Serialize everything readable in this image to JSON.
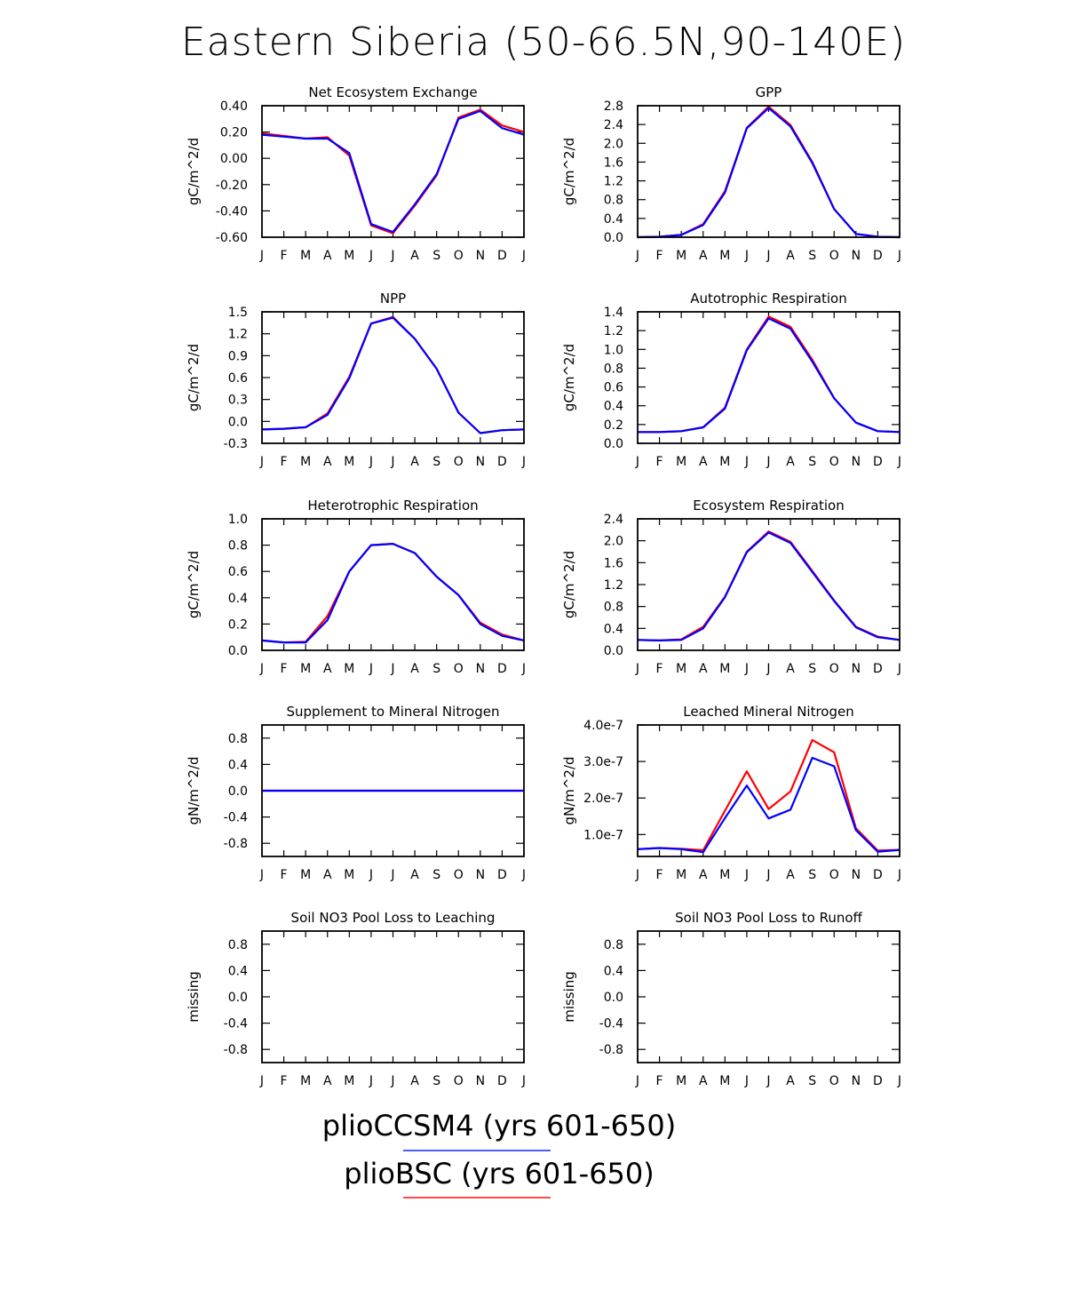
{
  "title": "Eastern Siberia (50-66.5N,90-140E)",
  "months": [
    "J",
    "F",
    "M",
    "A",
    "M",
    "J",
    "J",
    "A",
    "S",
    "O",
    "N",
    "D",
    "J"
  ],
  "legend": [
    {
      "label": "plioCCSM4 (yrs 601-650)",
      "color": "#4a5cff"
    },
    {
      "label": "plioBSC (yrs 601-650)",
      "color": "#ff4a4a"
    }
  ],
  "colors": {
    "series_a": "#0000ff",
    "series_b": "#ff0000"
  },
  "chart_data": [
    {
      "type": "line",
      "title": "Net Ecosystem Exchange",
      "ylabel": "gC/m^2/d",
      "ylim": [
        -0.6,
        0.4
      ],
      "yticks": [
        -0.6,
        -0.4,
        -0.2,
        0.0,
        0.2,
        0.4
      ],
      "ytick_labels": [
        "-0.60",
        "-0.40",
        "-0.20",
        "0.00",
        "0.20",
        "0.40"
      ],
      "series": [
        {
          "name": "plioBSC (yrs 601-650)",
          "values": [
            0.19,
            0.17,
            0.15,
            0.16,
            0.02,
            -0.51,
            -0.57,
            -0.36,
            -0.13,
            0.31,
            0.37,
            0.25,
            0.2
          ]
        },
        {
          "name": "plioCCSM4 (yrs 601-650)",
          "values": [
            0.18,
            0.165,
            0.15,
            0.15,
            0.04,
            -0.5,
            -0.56,
            -0.35,
            -0.12,
            0.3,
            0.36,
            0.23,
            0.18
          ]
        }
      ]
    },
    {
      "type": "line",
      "title": "GPP",
      "ylabel": "gC/m^2/d",
      "ylim": [
        0,
        2.8
      ],
      "yticks": [
        0,
        0.4,
        0.8,
        1.2,
        1.6,
        2.0,
        2.4,
        2.8
      ],
      "ytick_labels": [
        "0.0",
        "0.4",
        "0.8",
        "1.2",
        "1.6",
        "2.0",
        "2.4",
        "2.8"
      ],
      "series": [
        {
          "name": "plioBSC (yrs 601-650)",
          "values": [
            0.0,
            0.01,
            0.05,
            0.28,
            0.98,
            2.33,
            2.78,
            2.39,
            1.6,
            0.6,
            0.07,
            0.01,
            0.0
          ]
        },
        {
          "name": "plioCCSM4 (yrs 601-650)",
          "values": [
            0.0,
            0.01,
            0.05,
            0.26,
            0.95,
            2.32,
            2.75,
            2.36,
            1.58,
            0.6,
            0.07,
            0.01,
            0.0
          ]
        }
      ]
    },
    {
      "type": "line",
      "title": "NPP",
      "ylabel": "gC/m^2/d",
      "ylim": [
        -0.3,
        1.5
      ],
      "yticks": [
        -0.3,
        0,
        0.3,
        0.6,
        0.9,
        1.2,
        1.5
      ],
      "ytick_labels": [
        "-0.3",
        "0.0",
        "0.3",
        "0.6",
        "0.9",
        "1.2",
        "1.5"
      ],
      "series": [
        {
          "name": "plioBSC (yrs 601-650)",
          "values": [
            -0.11,
            -0.1,
            -0.08,
            0.11,
            0.61,
            1.34,
            1.43,
            1.13,
            0.72,
            0.12,
            -0.16,
            -0.12,
            -0.11
          ]
        },
        {
          "name": "plioCCSM4 (yrs 601-650)",
          "values": [
            -0.11,
            -0.1,
            -0.08,
            0.09,
            0.59,
            1.34,
            1.42,
            1.13,
            0.72,
            0.12,
            -0.16,
            -0.12,
            -0.11
          ]
        }
      ]
    },
    {
      "type": "line",
      "title": "Autotrophic Respiration",
      "ylabel": "gC/m^2/d",
      "ylim": [
        0,
        1.4
      ],
      "yticks": [
        0,
        0.2,
        0.4,
        0.6,
        0.8,
        1.0,
        1.2,
        1.4
      ],
      "ytick_labels": [
        "0.0",
        "0.2",
        "0.4",
        "0.6",
        "0.8",
        "1.0",
        "1.2",
        "1.4"
      ],
      "series": [
        {
          "name": "plioBSC (yrs 601-650)",
          "values": [
            0.12,
            0.12,
            0.13,
            0.17,
            0.38,
            1.0,
            1.35,
            1.24,
            0.89,
            0.48,
            0.22,
            0.13,
            0.12
          ]
        },
        {
          "name": "plioCCSM4 (yrs 601-650)",
          "values": [
            0.12,
            0.12,
            0.13,
            0.17,
            0.37,
            0.99,
            1.33,
            1.22,
            0.87,
            0.48,
            0.22,
            0.13,
            0.12
          ]
        }
      ]
    },
    {
      "type": "line",
      "title": "Heterotrophic Respiration",
      "ylabel": "gC/m^2/d",
      "ylim": [
        0,
        1.0
      ],
      "yticks": [
        0,
        0.2,
        0.4,
        0.6,
        0.8,
        1.0
      ],
      "ytick_labels": [
        "0.0",
        "0.2",
        "0.4",
        "0.6",
        "0.8",
        "1.0"
      ],
      "series": [
        {
          "name": "plioBSC (yrs 601-650)",
          "values": [
            0.075,
            0.06,
            0.065,
            0.26,
            0.6,
            0.8,
            0.81,
            0.74,
            0.56,
            0.42,
            0.21,
            0.12,
            0.075
          ]
        },
        {
          "name": "plioCCSM4 (yrs 601-650)",
          "values": [
            0.075,
            0.06,
            0.06,
            0.23,
            0.6,
            0.8,
            0.81,
            0.74,
            0.56,
            0.42,
            0.2,
            0.11,
            0.075
          ]
        }
      ]
    },
    {
      "type": "line",
      "title": "Ecosystem Respiration",
      "ylabel": "gC/m^2/d",
      "ylim": [
        0,
        2.4
      ],
      "yticks": [
        0,
        0.4,
        0.8,
        1.2,
        1.6,
        2.0,
        2.4
      ],
      "ytick_labels": [
        "0.0",
        "0.4",
        "0.8",
        "1.2",
        "1.6",
        "2.0",
        "2.4"
      ],
      "series": [
        {
          "name": "plioBSC (yrs 601-650)",
          "values": [
            0.19,
            0.18,
            0.2,
            0.43,
            0.98,
            1.8,
            2.17,
            1.98,
            1.45,
            0.91,
            0.43,
            0.25,
            0.19
          ]
        },
        {
          "name": "plioCCSM4 (yrs 601-650)",
          "values": [
            0.19,
            0.18,
            0.19,
            0.4,
            0.97,
            1.79,
            2.15,
            1.96,
            1.43,
            0.9,
            0.42,
            0.24,
            0.19
          ]
        }
      ]
    },
    {
      "type": "line",
      "title": "Supplement to Mineral Nitrogen",
      "ylabel": "gN/m^2/d",
      "ylim": [
        -1.0,
        1.0
      ],
      "yticks": [
        -0.8,
        -0.4,
        0,
        0.4,
        0.8
      ],
      "ytick_labels": [
        "-0.8",
        "-0.4",
        "0.0",
        "0.4",
        "0.8"
      ],
      "series": [
        {
          "name": "plioBSC (yrs 601-650)",
          "values": [
            0,
            0,
            0,
            0,
            0,
            0,
            0,
            0,
            0,
            0,
            0,
            0,
            0
          ]
        },
        {
          "name": "plioCCSM4 (yrs 601-650)",
          "values": [
            0,
            0,
            0,
            0,
            0,
            0,
            0,
            0,
            0,
            0,
            0,
            0,
            0
          ]
        }
      ]
    },
    {
      "type": "line",
      "title": "Leached Mineral Nitrogen",
      "ylabel": "gN/m^2/d",
      "ylim": [
        4e-08,
        4e-07
      ],
      "yticks": [
        1e-07,
        2e-07,
        3e-07,
        4e-07
      ],
      "ytick_labels": [
        "1.0e-7",
        "2.0e-7",
        "3.0e-7",
        "4.0e-7"
      ],
      "series": [
        {
          "name": "plioBSC (yrs 601-650)",
          "values": [
            6e-08,
            6.3e-08,
            6.1e-08,
            5.7e-08,
            1.65e-07,
            2.73e-07,
            1.7e-07,
            2.18e-07,
            3.59e-07,
            3.25e-07,
            1.17e-07,
            5.6e-08,
            5.8e-08
          ]
        },
        {
          "name": "plioCCSM4 (yrs 601-650)",
          "values": [
            6e-08,
            6.3e-08,
            6e-08,
            5.2e-08,
            1.45e-07,
            2.34e-07,
            1.44e-07,
            1.68e-07,
            3.1e-07,
            2.87e-07,
            1.12e-07,
            5.3e-08,
            5.8e-08
          ]
        }
      ]
    },
    {
      "type": "line",
      "title": "Soil NO3 Pool Loss to Leaching",
      "ylabel": "missing",
      "ylim": [
        -1.0,
        1.0
      ],
      "yticks": [
        -0.8,
        -0.4,
        0,
        0.4,
        0.8
      ],
      "ytick_labels": [
        "-0.8",
        "-0.4",
        "0.0",
        "0.4",
        "0.8"
      ],
      "series": []
    },
    {
      "type": "line",
      "title": "Soil NO3 Pool Loss to Runoff",
      "ylabel": "missing",
      "ylim": [
        -1.0,
        1.0
      ],
      "yticks": [
        -0.8,
        -0.4,
        0,
        0.4,
        0.8
      ],
      "ytick_labels": [
        "-0.8",
        "-0.4",
        "0.0",
        "0.4",
        "0.8"
      ],
      "series": []
    }
  ]
}
